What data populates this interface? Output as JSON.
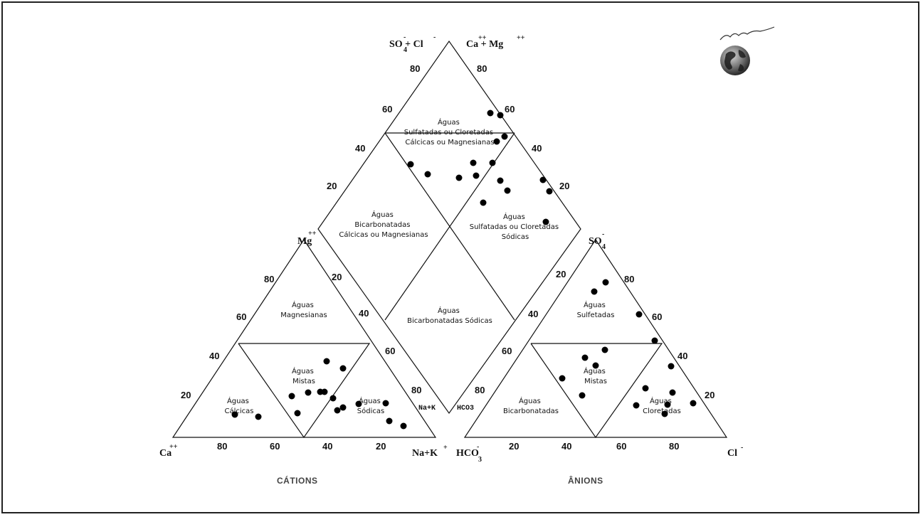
{
  "diagram": {
    "captions": {
      "cations": "CÁTIONS",
      "anions": "ÂNIONS"
    },
    "ions": {
      "so4_cl": "SO + Cl",
      "ca_mg": "Ca + Mg",
      "mg": "Mg",
      "so4": "SO",
      "ca": "Ca",
      "nak": "Na+K",
      "hco3": "HCO",
      "cl": "Cl",
      "nak_inner": "Na+K",
      "hco3_inner": "HCO3"
    },
    "regions": {
      "diamond_top": [
        "Águas",
        "Sulfatadas ou Cloretadas",
        "Cálcicas ou Magnesianas"
      ],
      "diamond_left": [
        "Águas",
        "Bicarbonatadas",
        "Cálcicas ou Magnesianas"
      ],
      "diamond_right": [
        "Águas",
        "Sulfatadas ou Cloretadas",
        "Sódicas"
      ],
      "diamond_bottom": [
        "Águas",
        "Bicarbonatadas Sódicas"
      ],
      "cat_top": [
        "Águas",
        "Magnesianas"
      ],
      "cat_mid": [
        "Águas",
        "Mistas"
      ],
      "cat_left": [
        "Águas",
        "Cálcicas"
      ],
      "cat_right": [
        "Águas",
        "Sódicas"
      ],
      "an_top": [
        "Águas",
        "Sulfetadas"
      ],
      "an_mid": [
        "Águas",
        "Mistas"
      ],
      "an_left": [
        "Águas",
        "Bicarbonatadas"
      ],
      "an_right": [
        "Águas",
        "Cloretadas"
      ]
    },
    "ticks": {
      "diamond_left": [
        "80",
        "60",
        "40",
        "20"
      ],
      "diamond_right": [
        "80",
        "60",
        "40",
        "20"
      ],
      "diamond_lower_left": [
        "20",
        "40",
        "60",
        "80"
      ],
      "diamond_lower_right": [
        "20",
        "40",
        "60",
        "80"
      ],
      "cat_left": [
        "80",
        "60",
        "40",
        "20"
      ],
      "cat_bottom": [
        "80",
        "60",
        "40",
        "20"
      ],
      "an_bottom": [
        "20",
        "40",
        "60",
        "80"
      ],
      "an_right": [
        "80",
        "60",
        "40",
        "20"
      ]
    },
    "logo_name": "globe-logo"
  }
}
